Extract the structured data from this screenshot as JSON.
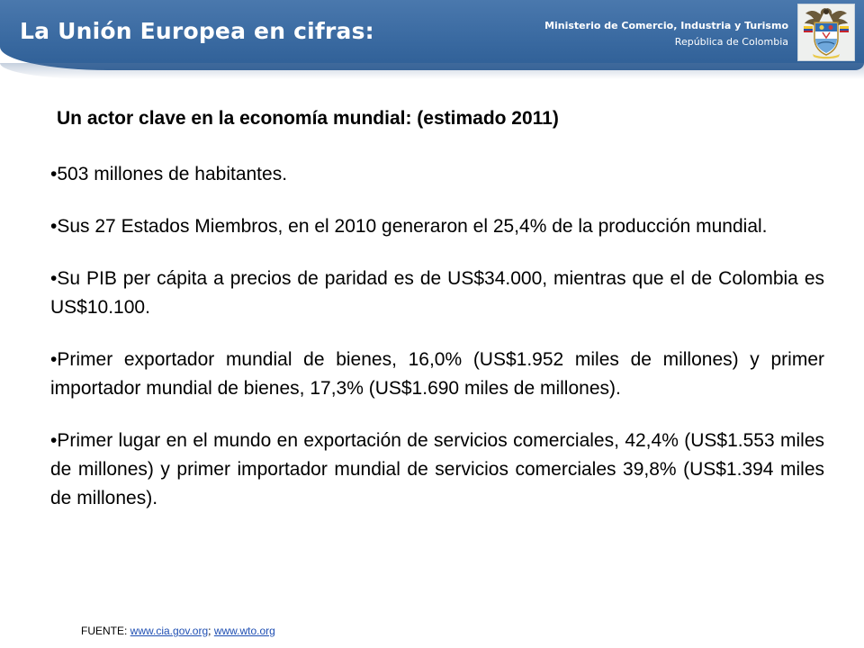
{
  "header": {
    "title": "La Unión Europea en cifras:",
    "ministry_name": "Ministerio de Comercio, Industria y Turismo",
    "country": "República de Colombia",
    "emblem_icon": "colombia-coat-of-arms-icon",
    "banner_color": "#3a6aa1"
  },
  "content": {
    "subtitle": "Un actor clave en la economía mundial: (estimado 2011)",
    "bullet_char": "•",
    "bullets": [
      "503 millones de habitantes.",
      "Sus 27 Estados Miembros, en el 2010 generaron el 25,4% de la producción mundial.",
      "Su PIB per cápita a precios de paridad es de US$34.000, mientras que el de Colombia es US$10.100.",
      "Primer exportador mundial de bienes, 16,0% (US$1.952 miles de millones) y primer importador mundial de bienes, 17,3% (US$1.690 miles de millones).",
      "Primer lugar en el mundo en exportación de servicios comerciales, 42,4% (US$1.553 miles de millones) y primer importador mundial de servicios comerciales 39,8% (US$1.394 miles de millones)."
    ]
  },
  "footer": {
    "label": "FUENTE: ",
    "link1": "www.cia.gov.org",
    "separator": "; ",
    "link2": "www.wto.org",
    "link_color": "#1f4fb3"
  }
}
